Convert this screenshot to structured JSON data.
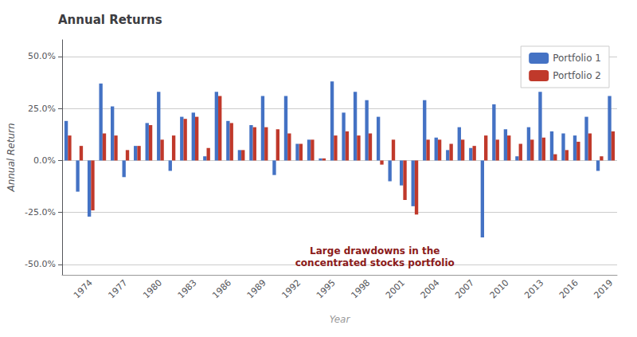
{
  "chart_data": {
    "type": "bar",
    "title": "Annual Returns",
    "x_label": "Year",
    "y_label": "Annual Return",
    "categories": [
      null,
      null,
      "1974",
      null,
      null,
      "1977",
      null,
      null,
      "1980",
      null,
      null,
      "1983",
      null,
      null,
      "1986",
      null,
      null,
      "1989",
      null,
      null,
      "1992",
      null,
      null,
      "1995",
      null,
      null,
      "1998",
      null,
      null,
      "2001",
      null,
      null,
      "2004",
      null,
      null,
      "2007",
      null,
      null,
      "2010",
      null,
      null,
      "2013",
      null,
      null,
      "2016",
      null,
      null,
      "2019"
    ],
    "series": [
      {
        "name": "Portfolio 1",
        "color": "#4472C4",
        "values": [
          0.19,
          -0.15,
          -0.27,
          0.37,
          0.26,
          -0.08,
          0.07,
          0.18,
          0.33,
          -0.05,
          0.21,
          0.23,
          0.02,
          0.33,
          0.19,
          0.05,
          0.17,
          0.31,
          -0.07,
          0.31,
          0.08,
          0.1,
          0.01,
          0.38,
          0.23,
          0.33,
          0.29,
          0.21,
          -0.1,
          -0.12,
          -0.22,
          0.29,
          0.11,
          0.05,
          0.16,
          0.06,
          -0.37,
          0.27,
          0.15,
          0.02,
          0.16,
          0.33,
          0.14,
          0.13,
          0.12,
          0.21,
          -0.05,
          0.31
        ]
      },
      {
        "name": "Portfolio 2",
        "color": "#C0392B",
        "values": [
          0.12,
          0.07,
          -0.24,
          0.13,
          0.12,
          0.05,
          0.07,
          0.17,
          0.1,
          0.12,
          0.2,
          0.21,
          0.06,
          0.31,
          0.18,
          0.05,
          0.16,
          0.16,
          0.15,
          0.13,
          0.08,
          0.1,
          0.01,
          0.12,
          0.14,
          0.12,
          0.13,
          -0.02,
          0.1,
          -0.19,
          -0.26,
          0.1,
          0.1,
          0.08,
          0.1,
          0.07,
          0.12,
          0.1,
          0.12,
          0.08,
          0.1,
          0.11,
          0.03,
          0.05,
          0.09,
          0.13,
          0.02,
          0.14
        ]
      }
    ],
    "ylim": [
      -0.55,
      0.58
    ],
    "yticks": [
      {
        "value": -0.5,
        "label": "-50.0%"
      },
      {
        "value": -0.25,
        "label": "-25.0%"
      },
      {
        "value": 0,
        "label": "0.0%"
      },
      {
        "value": 0.25,
        "label": "25.0%"
      },
      {
        "value": 0.5,
        "label": "50.0%"
      }
    ],
    "grid": true,
    "legend": "upper right",
    "annotations": [
      {
        "text": "Large drawdowns in the\nconcentrated stocks portfolio",
        "color": "#8B1A1A"
      }
    ]
  }
}
